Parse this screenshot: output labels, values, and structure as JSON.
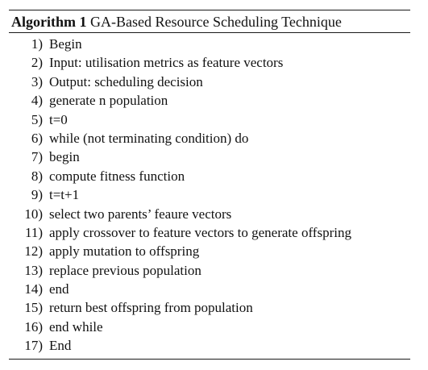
{
  "algorithm": {
    "label": "Algorithm 1",
    "title": "GA-Based Resource Scheduling Technique",
    "steps": [
      {
        "num": "1)",
        "text": "Begin"
      },
      {
        "num": "2)",
        "text": "Input: utilisation metrics as feature vectors"
      },
      {
        "num": "3)",
        "text": "Output: scheduling decision"
      },
      {
        "num": "4)",
        "text": "generate n population"
      },
      {
        "num": "5)",
        "text": "t=0"
      },
      {
        "num": "6)",
        "text": "while (not terminating condition) do"
      },
      {
        "num": "7)",
        "text": "begin"
      },
      {
        "num": "8)",
        "text": "compute fitness function"
      },
      {
        "num": "9)",
        "text": "t=t+1"
      },
      {
        "num": "10)",
        "text": "select two parents’ feaure vectors"
      },
      {
        "num": "11)",
        "text": "apply crossover to feature vectors to generate offspring"
      },
      {
        "num": "12)",
        "text": "apply mutation to offspring"
      },
      {
        "num": "13)",
        "text": "replace previous population"
      },
      {
        "num": "14)",
        "text": "end"
      },
      {
        "num": "15)",
        "text": "return best offspring from population"
      },
      {
        "num": "16)",
        "text": "end while"
      },
      {
        "num": "17)",
        "text": "End"
      }
    ]
  }
}
